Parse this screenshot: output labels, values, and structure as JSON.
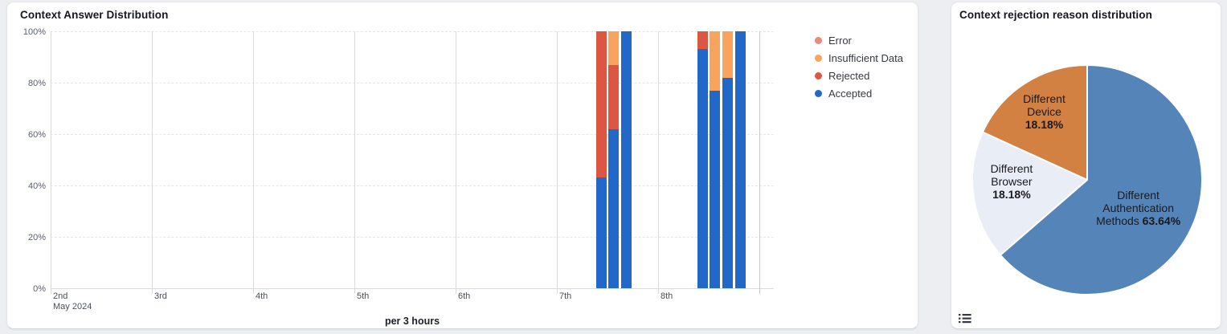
{
  "left_panel": {
    "title": "Context Answer Distribution",
    "xlabel": "per 3 hours",
    "legend": [
      {
        "label": "Error",
        "key": "error",
        "color": "#E9897E"
      },
      {
        "label": "Insufficient Data",
        "key": "insufficient_data",
        "color": "#F8A35E"
      },
      {
        "label": "Rejected",
        "key": "rejected",
        "color": "#DC5742"
      },
      {
        "label": "Accepted",
        "key": "accepted",
        "color": "#2268C8"
      }
    ]
  },
  "right_panel": {
    "title": "Context rejection reason distribution",
    "legend_toggle_icon": "list-icon"
  },
  "chart_data": [
    {
      "type": "bar",
      "stacked": true,
      "unit": "percent",
      "title": "Context Answer Distribution",
      "xlabel": "per 3 hours",
      "x_axis": {
        "day_ticks": [
          "2nd",
          "3rd",
          "4th",
          "5th",
          "6th",
          "7th",
          "8th"
        ],
        "start_sublabel": "May 2024",
        "slots_per_day": 8,
        "total_days": 7
      },
      "y_axis": {
        "ticks": [
          "0%",
          "20%",
          "40%",
          "60%",
          "80%",
          "100%"
        ],
        "range": [
          0,
          100
        ],
        "grid": "dashed"
      },
      "legend_position": "right",
      "series_order_bottom_up": [
        "accepted",
        "rejected",
        "insufficient_data",
        "error"
      ],
      "bars": [
        {
          "slot": 43,
          "accepted": 43,
          "rejected": 57,
          "insufficient_data": 0,
          "error": 0
        },
        {
          "slot": 44,
          "accepted": 62,
          "rejected": 25,
          "insufficient_data": 13,
          "error": 0
        },
        {
          "slot": 45,
          "accepted": 100,
          "rejected": 0,
          "insufficient_data": 0,
          "error": 0
        },
        {
          "slot": 51,
          "accepted": 93,
          "rejected": 7,
          "insufficient_data": 0,
          "error": 0
        },
        {
          "slot": 52,
          "accepted": 77,
          "rejected": 0,
          "insufficient_data": 23,
          "error": 0
        },
        {
          "slot": 53,
          "accepted": 82,
          "rejected": 0,
          "insufficient_data": 18,
          "error": 0
        },
        {
          "slot": 54,
          "accepted": 100,
          "rejected": 0,
          "insufficient_data": 0,
          "error": 0
        }
      ]
    },
    {
      "type": "pie",
      "title": "Context rejection reason distribution",
      "start_angle": "12-o-clock",
      "direction": "clockwise",
      "slices": [
        {
          "label": "Different Authentication Methods",
          "value": 63.64,
          "display": "63.64%",
          "color": "#5585B8",
          "label_lines": [
            "Different",
            "Authentication",
            "Methods"
          ],
          "pct_inline": true
        },
        {
          "label": "Different Browser",
          "value": 18.18,
          "display": "18.18%",
          "color": "#E9EDF5",
          "label_lines": [
            "Different",
            "Browser"
          ],
          "pct_inline": false
        },
        {
          "label": "Different Device",
          "value": 18.18,
          "display": "18.18%",
          "color": "#D28142",
          "label_lines": [
            "Different",
            "Device"
          ],
          "pct_inline": false
        }
      ]
    }
  ]
}
